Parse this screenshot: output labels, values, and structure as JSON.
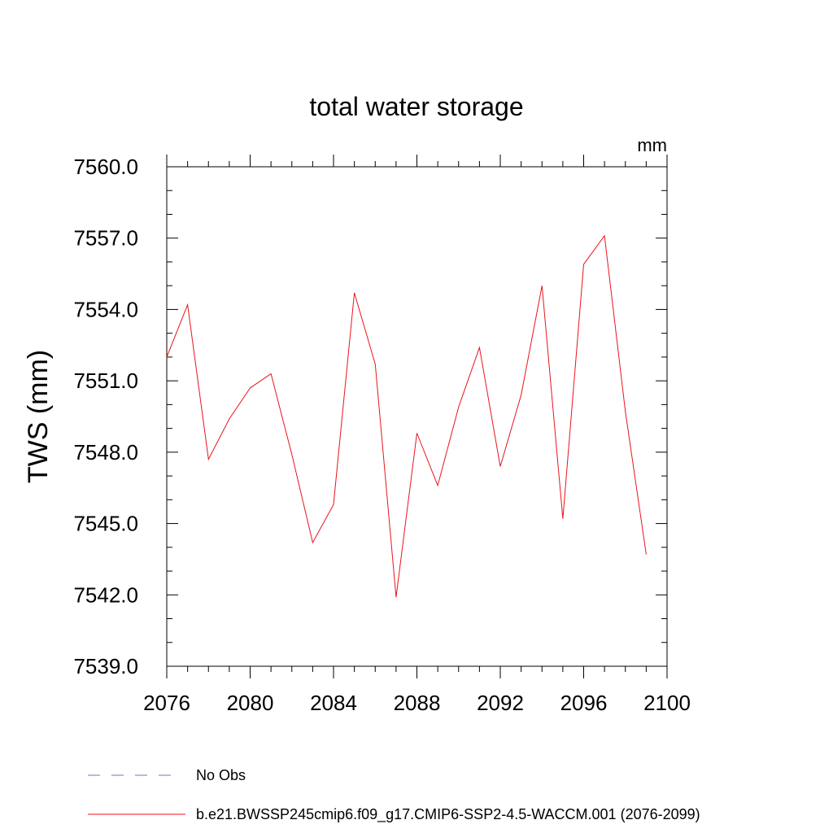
{
  "chart_data": {
    "type": "line",
    "title": "total water storage",
    "units_label": "mm",
    "ylabel": "TWS  (mm)",
    "xlabel": "",
    "xlim": [
      2076,
      2100
    ],
    "ylim": [
      7539.0,
      7560.0
    ],
    "x_ticks": [
      2076,
      2080,
      2084,
      2088,
      2092,
      2096,
      2100
    ],
    "x_tick_labels": [
      "2076",
      "2080",
      "2084",
      "2088",
      "2092",
      "2096",
      "2100"
    ],
    "y_ticks": [
      7539.0,
      7542.0,
      7545.0,
      7548.0,
      7551.0,
      7554.0,
      7557.0,
      7560.0
    ],
    "y_tick_labels": [
      "7539.0",
      "7542.0",
      "7545.0",
      "7548.0",
      "7551.0",
      "7554.0",
      "7557.0",
      "7560.0"
    ],
    "grid": false,
    "legend_position": "bottom-left",
    "x": [
      2076,
      2077,
      2078,
      2079,
      2080,
      2081,
      2082,
      2083,
      2084,
      2085,
      2086,
      2087,
      2088,
      2089,
      2090,
      2091,
      2092,
      2093,
      2094,
      2095,
      2096,
      2097,
      2098,
      2099
    ],
    "series": [
      {
        "name": "b.e21.BWSSP245cmip6.f09_g17.CMIP6-SSP2-4.5-WACCM.001 (2076-2099)",
        "color": "#e8141c",
        "style": "solid",
        "values": [
          7552.0,
          7554.2,
          7547.7,
          7549.4,
          7550.7,
          7551.3,
          7547.9,
          7544.2,
          7545.8,
          7554.7,
          7551.7,
          7541.9,
          7548.8,
          7546.6,
          7549.9,
          7552.4,
          7547.4,
          7550.4,
          7555.0,
          7545.2,
          7555.9,
          7557.1,
          7549.7,
          7543.7
        ]
      }
    ],
    "legend": [
      {
        "label": "No Obs",
        "color": "#7d6fb0",
        "style": "dashed"
      },
      {
        "label": "b.e21.BWSSP245cmip6.f09_g17.CMIP6-SSP2-4.5-WACCM.001 (2076-2099)",
        "color": "#e8141c",
        "style": "solid"
      }
    ]
  }
}
